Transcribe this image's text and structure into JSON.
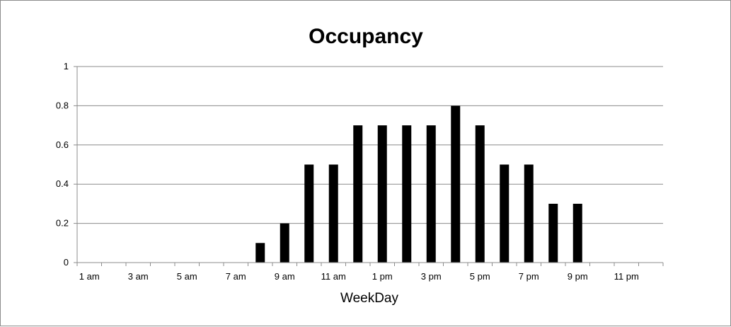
{
  "chart_data": {
    "type": "bar",
    "title": "Occupancy",
    "xlabel": "WeekDay",
    "ylabel": "",
    "ylim": [
      0,
      1
    ],
    "yticks": [
      "0",
      "0.2",
      "0.4",
      "0.6",
      "0.8",
      "1"
    ],
    "ytick_values": [
      0,
      0.2,
      0.4,
      0.6,
      0.8,
      1
    ],
    "grid": true,
    "legend": "none",
    "bar_color": "#000000",
    "categories": [
      "1 am",
      "2 am",
      "3 am",
      "4 am",
      "5 am",
      "6 am",
      "7 am",
      "8 am",
      "9 am",
      "10 am",
      "11 am",
      "12 pm",
      "1 pm",
      "2 pm",
      "3 pm",
      "4 pm",
      "5 pm",
      "6 pm",
      "7 pm",
      "8 pm",
      "9 pm",
      "10 pm",
      "11 pm",
      "12 am"
    ],
    "xtick_labels": [
      "1 am",
      "",
      "3 am",
      "",
      "5 am",
      "",
      "7 am",
      "",
      "9 am",
      "",
      "11 am",
      "",
      "1 pm",
      "",
      "3 pm",
      "",
      "5 pm",
      "",
      "7 pm",
      "",
      "9 pm",
      "",
      "11 pm",
      ""
    ],
    "values": [
      0,
      0,
      0,
      0,
      0,
      0,
      0,
      0.1,
      0.2,
      0.5,
      0.5,
      0.7,
      0.7,
      0.7,
      0.7,
      0.8,
      0.7,
      0.5,
      0.5,
      0.3,
      0.3,
      0,
      0,
      0
    ]
  }
}
